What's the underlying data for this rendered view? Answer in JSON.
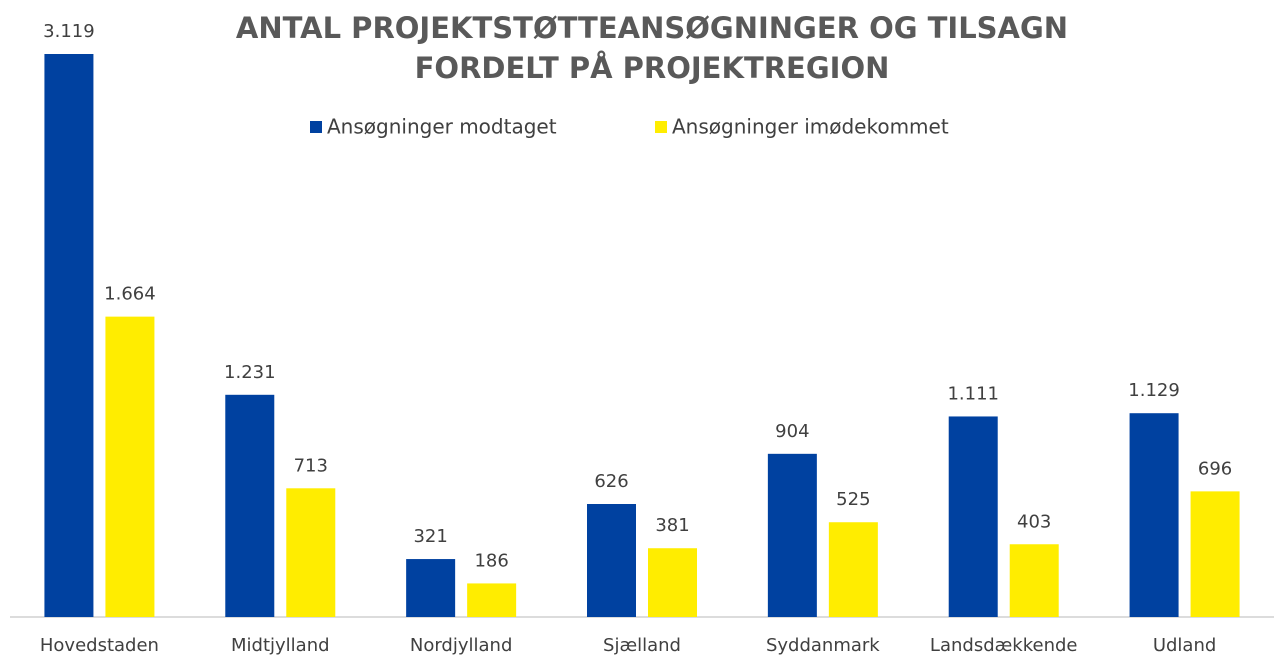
{
  "chart_data": {
    "type": "bar",
    "title": [
      "ANTAL PROJEKTSTØTTEANSØGNINGER OG TILSAGN",
      "FORDELT PÅ PROJEKTREGION"
    ],
    "categories": [
      "Hovedstaden",
      "Midtjylland",
      "Nordjylland",
      "Sjælland",
      "Syddanmark",
      "Landsdækkende",
      "Udland"
    ],
    "series": [
      {
        "name": "Ansøgninger modtaget",
        "color": "#0041a0",
        "values": [
          3119,
          1231,
          321,
          626,
          904,
          1111,
          1129
        ],
        "value_labels": [
          "3.119",
          "1.231",
          "321",
          "626",
          "904",
          "1.111",
          "1.129"
        ]
      },
      {
        "name": "Ansøgninger imødekommet",
        "color": "#ffed00",
        "values": [
          1664,
          713,
          186,
          381,
          525,
          403,
          696
        ],
        "value_labels": [
          "1.664",
          "713",
          "186",
          "381",
          "525",
          "403",
          "696"
        ]
      }
    ],
    "legend": "top"
  }
}
